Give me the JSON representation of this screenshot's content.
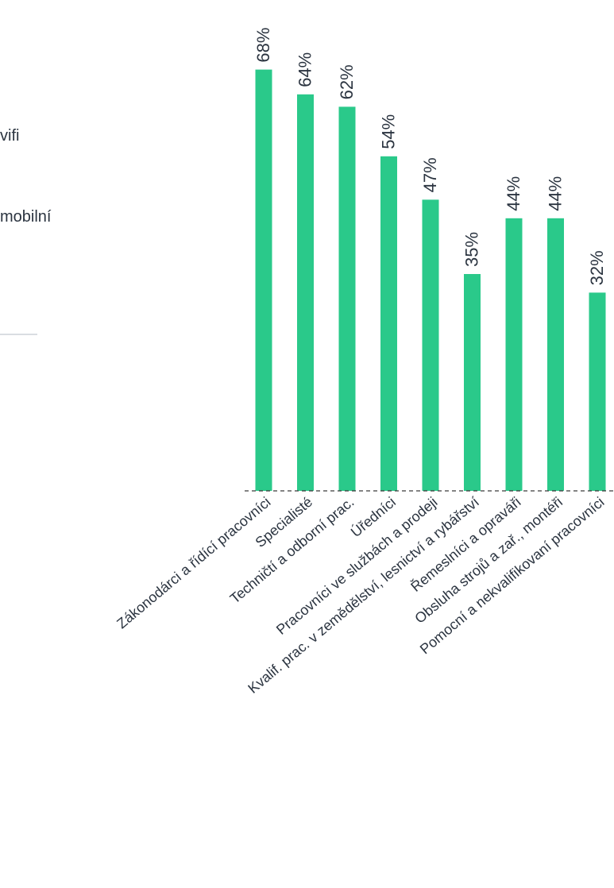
{
  "left_panel": {
    "fragment_1": "vifi",
    "fragment_2": "mobilní"
  },
  "chart_data": {
    "type": "bar",
    "categories": [
      "Zákonodárci a řídící pracovníci",
      "Specialisté",
      "Techničtí a odborní prac.",
      "Úředníci",
      "Pracovníci ve službách a prodeji",
      "Kvalif. prac. v zemědělství, lesnictví a rybářství",
      "Řemeslníci a opraváři",
      "Obsluha strojů a zař., montéři",
      "Pomocní a nekvalifikovaní pracovníci"
    ],
    "values": [
      68,
      64,
      62,
      54,
      47,
      35,
      44,
      44,
      32
    ],
    "value_labels": [
      "68%",
      "64%",
      "62%",
      "54%",
      "47%",
      "35%",
      "44%",
      "44%",
      "32%"
    ],
    "ylim": [
      0,
      80
    ],
    "grid": false,
    "colors": {
      "bar": "#2ac98a",
      "baseline": "#3a3a3a",
      "text": "#2b3440"
    }
  }
}
